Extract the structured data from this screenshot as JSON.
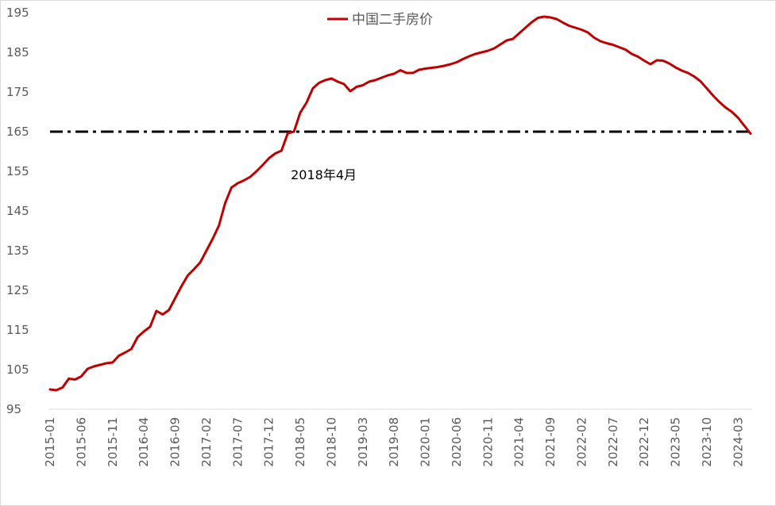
{
  "chart_data": {
    "type": "line",
    "title": "",
    "xlabel": "",
    "ylabel": "",
    "ylim": [
      95,
      195
    ],
    "yticks": [
      95,
      105,
      115,
      125,
      135,
      145,
      155,
      165,
      175,
      185,
      195
    ],
    "grid": false,
    "legend": "top-center",
    "x_tick_labels": [
      "2015-01",
      "2015-06",
      "2015-11",
      "2016-04",
      "2016-09",
      "2017-02",
      "2017-07",
      "2017-12",
      "2018-05",
      "2018-10",
      "2019-03",
      "2019-08",
      "2020-01",
      "2020-06",
      "2020-11",
      "2021-04",
      "2021-09",
      "2022-02",
      "2022-07",
      "2022-12",
      "2023-05",
      "2023-10",
      "2024-03"
    ],
    "series": [
      {
        "name": "中国二手房价",
        "color": "#C00000",
        "x": [
          "2015-01",
          "2015-02",
          "2015-03",
          "2015-04",
          "2015-05",
          "2015-06",
          "2015-07",
          "2015-08",
          "2015-09",
          "2015-10",
          "2015-11",
          "2015-12",
          "2016-01",
          "2016-02",
          "2016-03",
          "2016-04",
          "2016-05",
          "2016-06",
          "2016-07",
          "2016-08",
          "2016-09",
          "2016-10",
          "2016-11",
          "2016-12",
          "2017-01",
          "2017-02",
          "2017-03",
          "2017-04",
          "2017-05",
          "2017-06",
          "2017-07",
          "2017-08",
          "2017-09",
          "2017-10",
          "2017-11",
          "2017-12",
          "2018-01",
          "2018-02",
          "2018-03",
          "2018-04",
          "2018-05",
          "2018-06",
          "2018-07",
          "2018-08",
          "2018-09",
          "2018-10",
          "2018-11",
          "2018-12",
          "2019-01",
          "2019-02",
          "2019-03",
          "2019-04",
          "2019-05",
          "2019-06",
          "2019-07",
          "2019-08",
          "2019-09",
          "2019-10",
          "2019-11",
          "2019-12",
          "2020-01",
          "2020-02",
          "2020-03",
          "2020-04",
          "2020-05",
          "2020-06",
          "2020-07",
          "2020-08",
          "2020-09",
          "2020-10",
          "2020-11",
          "2020-12",
          "2021-01",
          "2021-02",
          "2021-03",
          "2021-04",
          "2021-05",
          "2021-06",
          "2021-07",
          "2021-08",
          "2021-09",
          "2021-10",
          "2021-11",
          "2021-12",
          "2022-01",
          "2022-02",
          "2022-03",
          "2022-04",
          "2022-05",
          "2022-06",
          "2022-07",
          "2022-08",
          "2022-09",
          "2022-10",
          "2022-11",
          "2022-12",
          "2023-01",
          "2023-02",
          "2023-03",
          "2023-04",
          "2023-05",
          "2023-06",
          "2023-07",
          "2023-08",
          "2023-09",
          "2023-10",
          "2023-11",
          "2023-12",
          "2024-01",
          "2024-02",
          "2024-03",
          "2024-04",
          "2024-05"
        ],
        "values": [
          100.0,
          99.8,
          100.5,
          102.7,
          102.5,
          103.3,
          105.2,
          105.8,
          106.2,
          106.6,
          106.8,
          108.5,
          109.3,
          110.2,
          113.2,
          114.6,
          115.8,
          119.8,
          118.9,
          120.0,
          123.0,
          126.0,
          128.7,
          130.3,
          132.0,
          135.0,
          138.0,
          141.3,
          147.0,
          150.9,
          152.0,
          152.7,
          153.6,
          155.0,
          156.6,
          158.3,
          159.5,
          160.2,
          164.6,
          165.0,
          169.8,
          172.3,
          175.9,
          177.3,
          178.0,
          178.4,
          177.6,
          177.0,
          175.2,
          176.3,
          176.7,
          177.6,
          178.0,
          178.6,
          179.2,
          179.6,
          180.5,
          179.8,
          179.8,
          180.6,
          180.9,
          181.1,
          181.3,
          181.6,
          182.0,
          182.5,
          183.3,
          184.0,
          184.6,
          185.0,
          185.4,
          186.0,
          187.0,
          188.0,
          188.4,
          189.8,
          191.2,
          192.6,
          193.7,
          194.0,
          193.8,
          193.4,
          192.5,
          191.7,
          191.2,
          190.7,
          190.0,
          188.7,
          187.8,
          187.3,
          186.9,
          186.3,
          185.7,
          184.6,
          183.9,
          182.9,
          182.0,
          183.0,
          182.9,
          182.2,
          181.2,
          180.4,
          179.8,
          178.9,
          177.7,
          175.9,
          174.1,
          172.5,
          171.1,
          170.0,
          168.5,
          166.5,
          164.5
        ]
      }
    ],
    "reference_line": {
      "value": 165,
      "style": "dash-dot",
      "color": "#000000"
    },
    "annotations": [
      {
        "text": "2018年4月",
        "x": "2018-04",
        "y": 163
      }
    ]
  }
}
